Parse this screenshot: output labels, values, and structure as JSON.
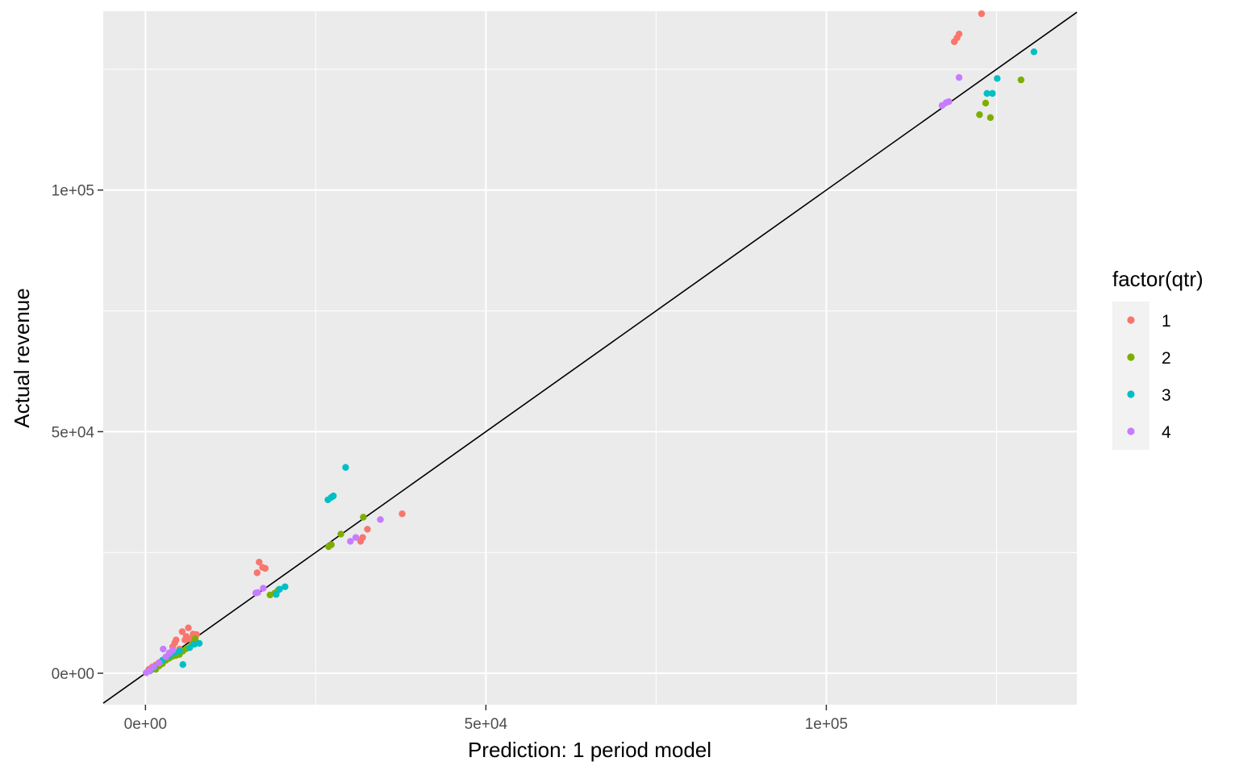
{
  "chart_data": {
    "type": "scatter",
    "title": "",
    "xlabel": "Prediction: 1 period model",
    "ylabel": "Actual revenue",
    "xlim": [
      -6200,
      136800
    ],
    "ylim": [
      -6500,
      137000
    ],
    "x_ticks": [
      {
        "value": 0,
        "label": "0e+00"
      },
      {
        "value": 50000,
        "label": "5e+04"
      },
      {
        "value": 100000,
        "label": "1e+05"
      }
    ],
    "y_ticks": [
      {
        "value": 0,
        "label": "0e+00"
      },
      {
        "value": 50000,
        "label": "5e+04"
      },
      {
        "value": 100000,
        "label": "1e+05"
      }
    ],
    "x_minor": [
      25000,
      75000,
      125000
    ],
    "y_minor": [
      25000,
      75000,
      125000
    ],
    "grid": true,
    "background": "#ebebeb",
    "reference_line": {
      "type": "identity",
      "slope": 1,
      "intercept": 0,
      "color": "#000000"
    },
    "legend": {
      "title": "factor(qtr)",
      "position": "right",
      "entries": [
        {
          "label": "1",
          "color": "#F8766D"
        },
        {
          "label": "2",
          "color": "#7CAE00"
        },
        {
          "label": "3",
          "color": "#00BFC4"
        },
        {
          "label": "4",
          "color": "#C77CFF"
        }
      ]
    },
    "series": [
      {
        "name": "1",
        "color": "#F8766D",
        "points": [
          [
            500,
            800
          ],
          [
            1000,
            1300
          ],
          [
            1500,
            1700
          ],
          [
            2000,
            2200
          ],
          [
            3000,
            2900
          ],
          [
            3500,
            4200
          ],
          [
            4000,
            5500
          ],
          [
            4300,
            6300
          ],
          [
            4500,
            6900
          ],
          [
            5000,
            5000
          ],
          [
            5400,
            8600
          ],
          [
            5800,
            6900
          ],
          [
            6000,
            7600
          ],
          [
            6300,
            9400
          ],
          [
            6600,
            7100
          ],
          [
            7000,
            8100
          ],
          [
            7500,
            8000
          ],
          [
            16400,
            20800
          ],
          [
            16700,
            23000
          ],
          [
            17200,
            21900
          ],
          [
            17600,
            21700
          ],
          [
            31600,
            27300
          ],
          [
            31900,
            28100
          ],
          [
            32600,
            29800
          ],
          [
            37700,
            33000
          ],
          [
            118800,
            130700
          ],
          [
            119200,
            131500
          ],
          [
            119500,
            132300
          ],
          [
            122800,
            136500
          ]
        ]
      },
      {
        "name": "2",
        "color": "#7CAE00",
        "points": [
          [
            1500,
            800
          ],
          [
            2000,
            1500
          ],
          [
            2500,
            2000
          ],
          [
            3000,
            2700
          ],
          [
            3500,
            3100
          ],
          [
            4000,
            3500
          ],
          [
            4500,
            3700
          ],
          [
            5000,
            3900
          ],
          [
            5500,
            4600
          ],
          [
            6000,
            5100
          ],
          [
            6800,
            6000
          ],
          [
            7300,
            7100
          ],
          [
            18300,
            16200
          ],
          [
            19000,
            16600
          ],
          [
            19500,
            17200
          ],
          [
            26900,
            26200
          ],
          [
            27300,
            26600
          ],
          [
            28700,
            28800
          ],
          [
            32000,
            32300
          ],
          [
            122500,
            115600
          ],
          [
            123400,
            118000
          ],
          [
            124100,
            115000
          ],
          [
            128600,
            122800
          ]
        ]
      },
      {
        "name": "3",
        "color": "#00BFC4",
        "points": [
          [
            700,
            500
          ],
          [
            1300,
            1300
          ],
          [
            2500,
            2700
          ],
          [
            3500,
            3600
          ],
          [
            4200,
            4200
          ],
          [
            5000,
            4600
          ],
          [
            5500,
            1800
          ],
          [
            6500,
            5300
          ],
          [
            7200,
            6000
          ],
          [
            7900,
            6200
          ],
          [
            19200,
            16300
          ],
          [
            19700,
            17400
          ],
          [
            20500,
            17900
          ],
          [
            26800,
            35900
          ],
          [
            27300,
            36400
          ],
          [
            27600,
            36700
          ],
          [
            29400,
            42600
          ],
          [
            123600,
            120000
          ],
          [
            124400,
            120000
          ],
          [
            125100,
            123100
          ],
          [
            130500,
            128600
          ]
        ]
      },
      {
        "name": "4",
        "color": "#C77CFF",
        "points": [
          [
            100,
            100
          ],
          [
            600,
            500
          ],
          [
            1200,
            1300
          ],
          [
            2000,
            2100
          ],
          [
            2600,
            5000
          ],
          [
            3000,
            3400
          ],
          [
            3500,
            4100
          ],
          [
            4000,
            4800
          ],
          [
            16200,
            16600
          ],
          [
            16500,
            16700
          ],
          [
            17300,
            17600
          ],
          [
            30100,
            27300
          ],
          [
            30900,
            28100
          ],
          [
            34500,
            31800
          ],
          [
            117000,
            117500
          ],
          [
            117600,
            118100
          ],
          [
            118000,
            118300
          ],
          [
            119500,
            123300
          ]
        ]
      }
    ]
  }
}
